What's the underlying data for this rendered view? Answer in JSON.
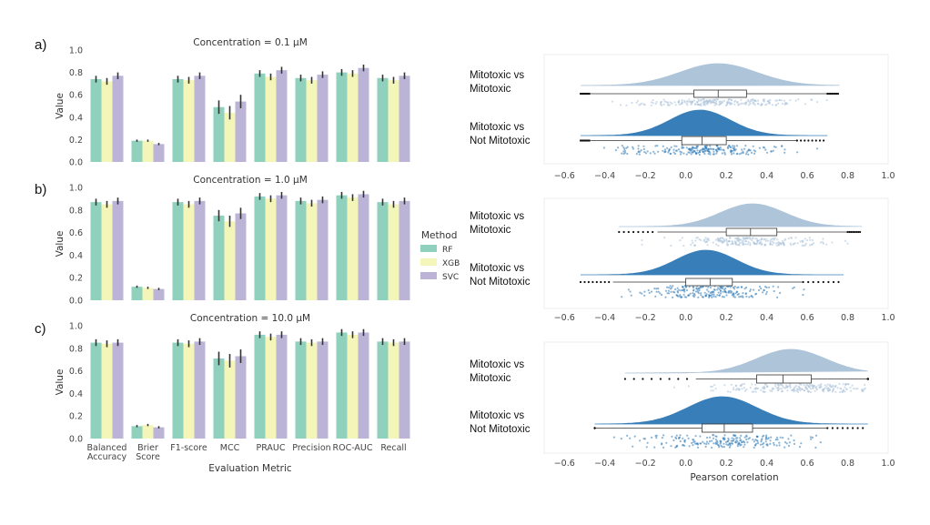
{
  "panel_labels": [
    "a)",
    "b)",
    "c)"
  ],
  "legend": {
    "title": "Method",
    "items": [
      {
        "name": "RF",
        "color": "#8fd1bd"
      },
      {
        "name": "XGB",
        "color": "#f4f5b8"
      },
      {
        "name": "SVC",
        "color": "#bcb4d6"
      }
    ]
  },
  "chart_data": [
    {
      "type": "bar",
      "title": "Concentration = 0.1 μM",
      "xlabel": "",
      "ylabel": "Value",
      "ylim": [
        0,
        1
      ],
      "yticks": [
        "0.0",
        "0.2",
        "0.4",
        "0.6",
        "0.8",
        "1.0"
      ],
      "categories": [
        "Balanced Accuracy",
        "Brier Score",
        "F1-score",
        "MCC",
        "PRAUC",
        "Precision",
        "ROC-AUC",
        "Recall"
      ],
      "show_category_labels": false,
      "series": [
        {
          "name": "RF",
          "values": [
            0.74,
            0.19,
            0.74,
            0.49,
            0.79,
            0.75,
            0.8,
            0.75
          ],
          "errors": [
            0.03,
            0.01,
            0.03,
            0.06,
            0.03,
            0.03,
            0.03,
            0.03
          ]
        },
        {
          "name": "XGB",
          "values": [
            0.72,
            0.19,
            0.73,
            0.44,
            0.76,
            0.73,
            0.79,
            0.73
          ],
          "errors": [
            0.03,
            0.01,
            0.03,
            0.06,
            0.03,
            0.03,
            0.03,
            0.03
          ]
        },
        {
          "name": "SVC",
          "values": [
            0.77,
            0.16,
            0.77,
            0.54,
            0.82,
            0.78,
            0.84,
            0.77
          ],
          "errors": [
            0.03,
            0.01,
            0.03,
            0.06,
            0.03,
            0.03,
            0.03,
            0.03
          ]
        }
      ]
    },
    {
      "type": "bar",
      "title": "Concentration = 1.0 μM",
      "xlabel": "",
      "ylabel": "Value",
      "ylim": [
        0,
        1
      ],
      "yticks": [
        "0.0",
        "0.2",
        "0.4",
        "0.6",
        "0.8",
        "1.0"
      ],
      "categories": [
        "Balanced Accuracy",
        "Brier Score",
        "F1-score",
        "MCC",
        "PRAUC",
        "Precision",
        "ROC-AUC",
        "Recall"
      ],
      "show_category_labels": false,
      "series": [
        {
          "name": "RF",
          "values": [
            0.87,
            0.12,
            0.87,
            0.75,
            0.92,
            0.88,
            0.93,
            0.87
          ],
          "errors": [
            0.03,
            0.01,
            0.03,
            0.05,
            0.03,
            0.03,
            0.03,
            0.03
          ]
        },
        {
          "name": "XGB",
          "values": [
            0.85,
            0.11,
            0.85,
            0.7,
            0.9,
            0.86,
            0.91,
            0.85
          ],
          "errors": [
            0.03,
            0.01,
            0.03,
            0.05,
            0.03,
            0.03,
            0.03,
            0.03
          ]
        },
        {
          "name": "SVC",
          "values": [
            0.88,
            0.1,
            0.88,
            0.77,
            0.93,
            0.89,
            0.94,
            0.88
          ],
          "errors": [
            0.03,
            0.01,
            0.03,
            0.05,
            0.03,
            0.03,
            0.03,
            0.03
          ]
        }
      ]
    },
    {
      "type": "bar",
      "title": "Concentration = 10.0 μM",
      "xlabel": "Evaluation Metric",
      "ylabel": "Value",
      "ylim": [
        0,
        1
      ],
      "yticks": [
        "0.0",
        "0.2",
        "0.4",
        "0.6",
        "0.8",
        "1.0"
      ],
      "categories": [
        "Balanced Accuracy",
        "Brier Score",
        "F1-score",
        "MCC",
        "PRAUC",
        "Precision",
        "ROC-AUC",
        "Recall"
      ],
      "show_category_labels": true,
      "series": [
        {
          "name": "RF",
          "values": [
            0.85,
            0.11,
            0.85,
            0.71,
            0.92,
            0.86,
            0.94,
            0.86
          ],
          "errors": [
            0.03,
            0.01,
            0.03,
            0.06,
            0.03,
            0.03,
            0.03,
            0.03
          ]
        },
        {
          "name": "XGB",
          "values": [
            0.84,
            0.12,
            0.84,
            0.69,
            0.9,
            0.85,
            0.92,
            0.85
          ],
          "errors": [
            0.03,
            0.01,
            0.03,
            0.06,
            0.03,
            0.03,
            0.03,
            0.03
          ]
        },
        {
          "name": "SVC",
          "values": [
            0.85,
            0.1,
            0.86,
            0.73,
            0.92,
            0.86,
            0.94,
            0.86
          ],
          "errors": [
            0.03,
            0.01,
            0.03,
            0.06,
            0.03,
            0.03,
            0.03,
            0.03
          ]
        }
      ]
    },
    {
      "type": "raincloud",
      "xlabel": "",
      "xlim": [
        -0.7,
        1.0
      ],
      "xticks": [
        -0.6,
        -0.4,
        -0.2,
        0.0,
        0.2,
        0.4,
        0.6,
        0.8,
        1.0
      ],
      "xtick_labels": [
        "−0.6",
        "−0.4",
        "−0.2",
        "0.0",
        "0.2",
        "0.4",
        "0.6",
        "0.8",
        "1.0"
      ],
      "groups": [
        {
          "label_lines": [
            "Mitotoxic vs",
            "Mitotoxic"
          ],
          "color": "#a9c1d8",
          "min": -0.47,
          "q1": 0.04,
          "median": 0.16,
          "q3": 0.3,
          "max": 0.7,
          "peak": 0.16,
          "sd": 0.19,
          "range": [
            -0.52,
            0.76
          ]
        },
        {
          "label_lines": [
            "Mitotoxic vs",
            "Not Mitotoxic"
          ],
          "color": "#2e78b5",
          "min": -0.47,
          "q1": -0.02,
          "median": 0.08,
          "q3": 0.2,
          "max": 0.55,
          "peak": 0.07,
          "sd": 0.15,
          "range": [
            -0.52,
            0.7
          ]
        }
      ]
    },
    {
      "type": "raincloud",
      "xlabel": "",
      "xlim": [
        -0.7,
        1.0
      ],
      "xticks": [
        -0.6,
        -0.4,
        -0.2,
        0.0,
        0.2,
        0.4,
        0.6,
        0.8,
        1.0
      ],
      "xtick_labels": [
        "−0.6",
        "−0.4",
        "−0.2",
        "0.0",
        "0.2",
        "0.4",
        "0.6",
        "0.8",
        "1.0"
      ],
      "groups": [
        {
          "label_lines": [
            "Mitotoxic vs",
            "Mitotoxic"
          ],
          "color": "#a9c1d8",
          "min": -0.14,
          "q1": 0.2,
          "median": 0.32,
          "q3": 0.45,
          "max": 0.8,
          "peak": 0.33,
          "sd": 0.16,
          "range": [
            -0.33,
            0.87
          ]
        },
        {
          "label_lines": [
            "Mitotoxic vs",
            "Not Mitotoxic"
          ],
          "color": "#2e78b5",
          "min": -0.36,
          "q1": 0.0,
          "median": 0.12,
          "q3": 0.23,
          "max": 0.58,
          "peak": 0.1,
          "sd": 0.15,
          "range": [
            -0.52,
            0.78
          ]
        }
      ]
    },
    {
      "type": "raincloud",
      "xlabel": "Pearson corelation",
      "xlim": [
        -0.7,
        1.0
      ],
      "xticks": [
        -0.6,
        -0.4,
        -0.2,
        0.0,
        0.2,
        0.4,
        0.6,
        0.8,
        1.0
      ],
      "xtick_labels": [
        "−0.6",
        "−0.4",
        "−0.2",
        "0.0",
        "0.2",
        "0.4",
        "0.6",
        "0.8",
        "1.0"
      ],
      "groups": [
        {
          "label_lines": [
            "Mitotoxic vs",
            "Mitotoxic"
          ],
          "color": "#a9c1d8",
          "min": 0.05,
          "q1": 0.35,
          "median": 0.48,
          "q3": 0.62,
          "max": 0.9,
          "peak": 0.52,
          "sd": 0.17,
          "range": [
            -0.3,
            0.9
          ]
        },
        {
          "label_lines": [
            "Mitotoxic vs",
            "Not Mitotoxic"
          ],
          "color": "#2e78b5",
          "min": -0.45,
          "q1": 0.08,
          "median": 0.19,
          "q3": 0.33,
          "max": 0.7,
          "peak": 0.18,
          "sd": 0.17,
          "range": [
            -0.45,
            0.9
          ]
        }
      ]
    }
  ]
}
